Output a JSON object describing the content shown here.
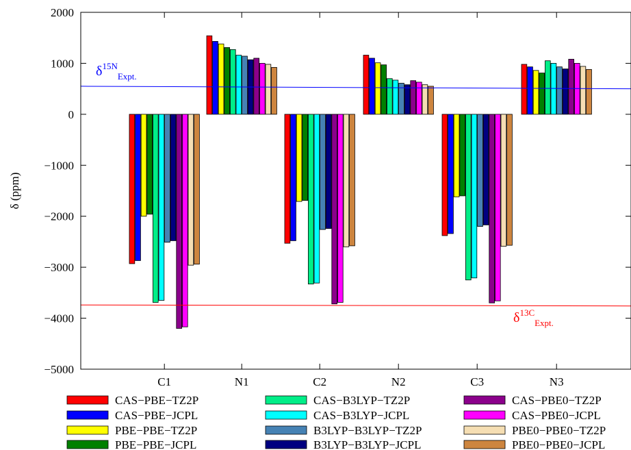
{
  "chart_data": {
    "type": "bar",
    "ylabel": "δ (ppm)",
    "ylim": [
      -5000,
      2000
    ],
    "yticks": [
      2000,
      1000,
      0,
      -1000,
      -2000,
      -3000,
      -4000,
      -5000
    ],
    "categories": [
      "C1",
      "N1",
      "C2",
      "N2",
      "C3",
      "N3"
    ],
    "grid": false,
    "legend_position": "bottom",
    "series": [
      {
        "name": "CAS−PBE−TZ2P",
        "color": "#ff0000",
        "values": [
          -2930,
          1540,
          -2530,
          1160,
          -2380,
          980
        ]
      },
      {
        "name": "CAS−PBE−JCPL",
        "color": "#0000ff",
        "values": [
          -2870,
          1430,
          -2480,
          1100,
          -2340,
          930
        ]
      },
      {
        "name": "PBE−PBE−TZ2P",
        "color": "#ffff00",
        "values": [
          -2000,
          1380,
          -1710,
          1010,
          -1620,
          860
        ]
      },
      {
        "name": "PBE−PBE−JCPL",
        "color": "#008000",
        "values": [
          -1960,
          1310,
          -1690,
          970,
          -1600,
          810
        ]
      },
      {
        "name": "CAS−B3LYP−TZ2P",
        "color": "#00ee88",
        "values": [
          -3690,
          1270,
          -3330,
          700,
          -3250,
          1050
        ]
      },
      {
        "name": "CAS−B3LYP−JCPL",
        "color": "#00ffff",
        "values": [
          -3650,
          1160,
          -3310,
          670,
          -3210,
          1000
        ]
      },
      {
        "name": "B3LYP−B3LYP−TZ2P",
        "color": "#4682b4",
        "values": [
          -2510,
          1140,
          -2260,
          610,
          -2200,
          930
        ]
      },
      {
        "name": "B3LYP−B3LYP−JCPL",
        "color": "#000080",
        "values": [
          -2480,
          1070,
          -2240,
          580,
          -2170,
          890
        ]
      },
      {
        "name": "CAS−PBE0−TZ2P",
        "color": "#8b008b",
        "values": [
          -4200,
          1100,
          -3720,
          660,
          -3700,
          1080
        ]
      },
      {
        "name": "CAS−PBE0−JCPL",
        "color": "#ff00ff",
        "values": [
          -4170,
          1000,
          -3690,
          630,
          -3660,
          1000
        ]
      },
      {
        "name": "PBE0−PBE0−TZ2P",
        "color": "#f5deb3",
        "values": [
          -2960,
          980,
          -2600,
          580,
          -2590,
          940
        ]
      },
      {
        "name": "PBE0−PBE0−JCPL",
        "color": "#cd853f",
        "values": [
          -2940,
          920,
          -2580,
          550,
          -2570,
          880
        ]
      }
    ],
    "reference_lines": [
      {
        "base": "δ",
        "sup": "15N",
        "sub": "Expt.",
        "color": "#0000ff",
        "y_start": 550,
        "y_end": 500
      },
      {
        "base": "δ",
        "sup": "13C",
        "sub": "Expt.",
        "color": "#ff0000",
        "y_start": -3740,
        "y_end": -3760
      }
    ]
  }
}
